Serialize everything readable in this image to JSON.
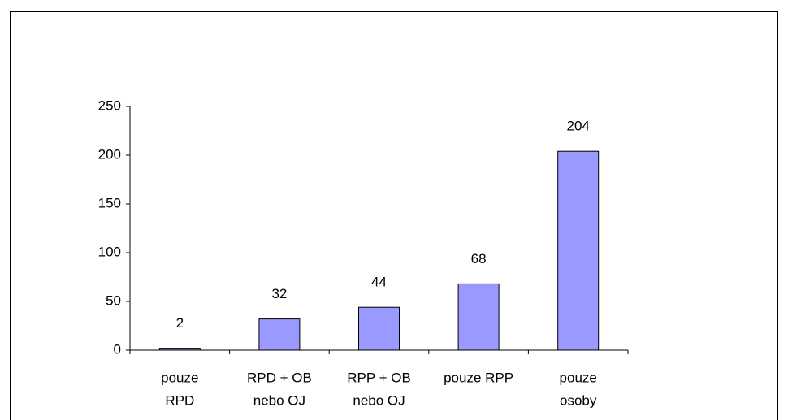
{
  "chart_data": {
    "type": "bar",
    "categories": [
      [
        "pouze",
        "RPD"
      ],
      [
        "RPD + OB",
        "nebo OJ"
      ],
      [
        "RPP + OB",
        "nebo OJ"
      ],
      [
        "pouze RPP"
      ],
      [
        "pouze",
        "osoby"
      ]
    ],
    "values": [
      2,
      32,
      44,
      68,
      204
    ],
    "color": "#9999ff",
    "ylim": [
      0,
      250
    ],
    "yticks": [
      0,
      50,
      100,
      150,
      200,
      250
    ],
    "grid": false
  }
}
